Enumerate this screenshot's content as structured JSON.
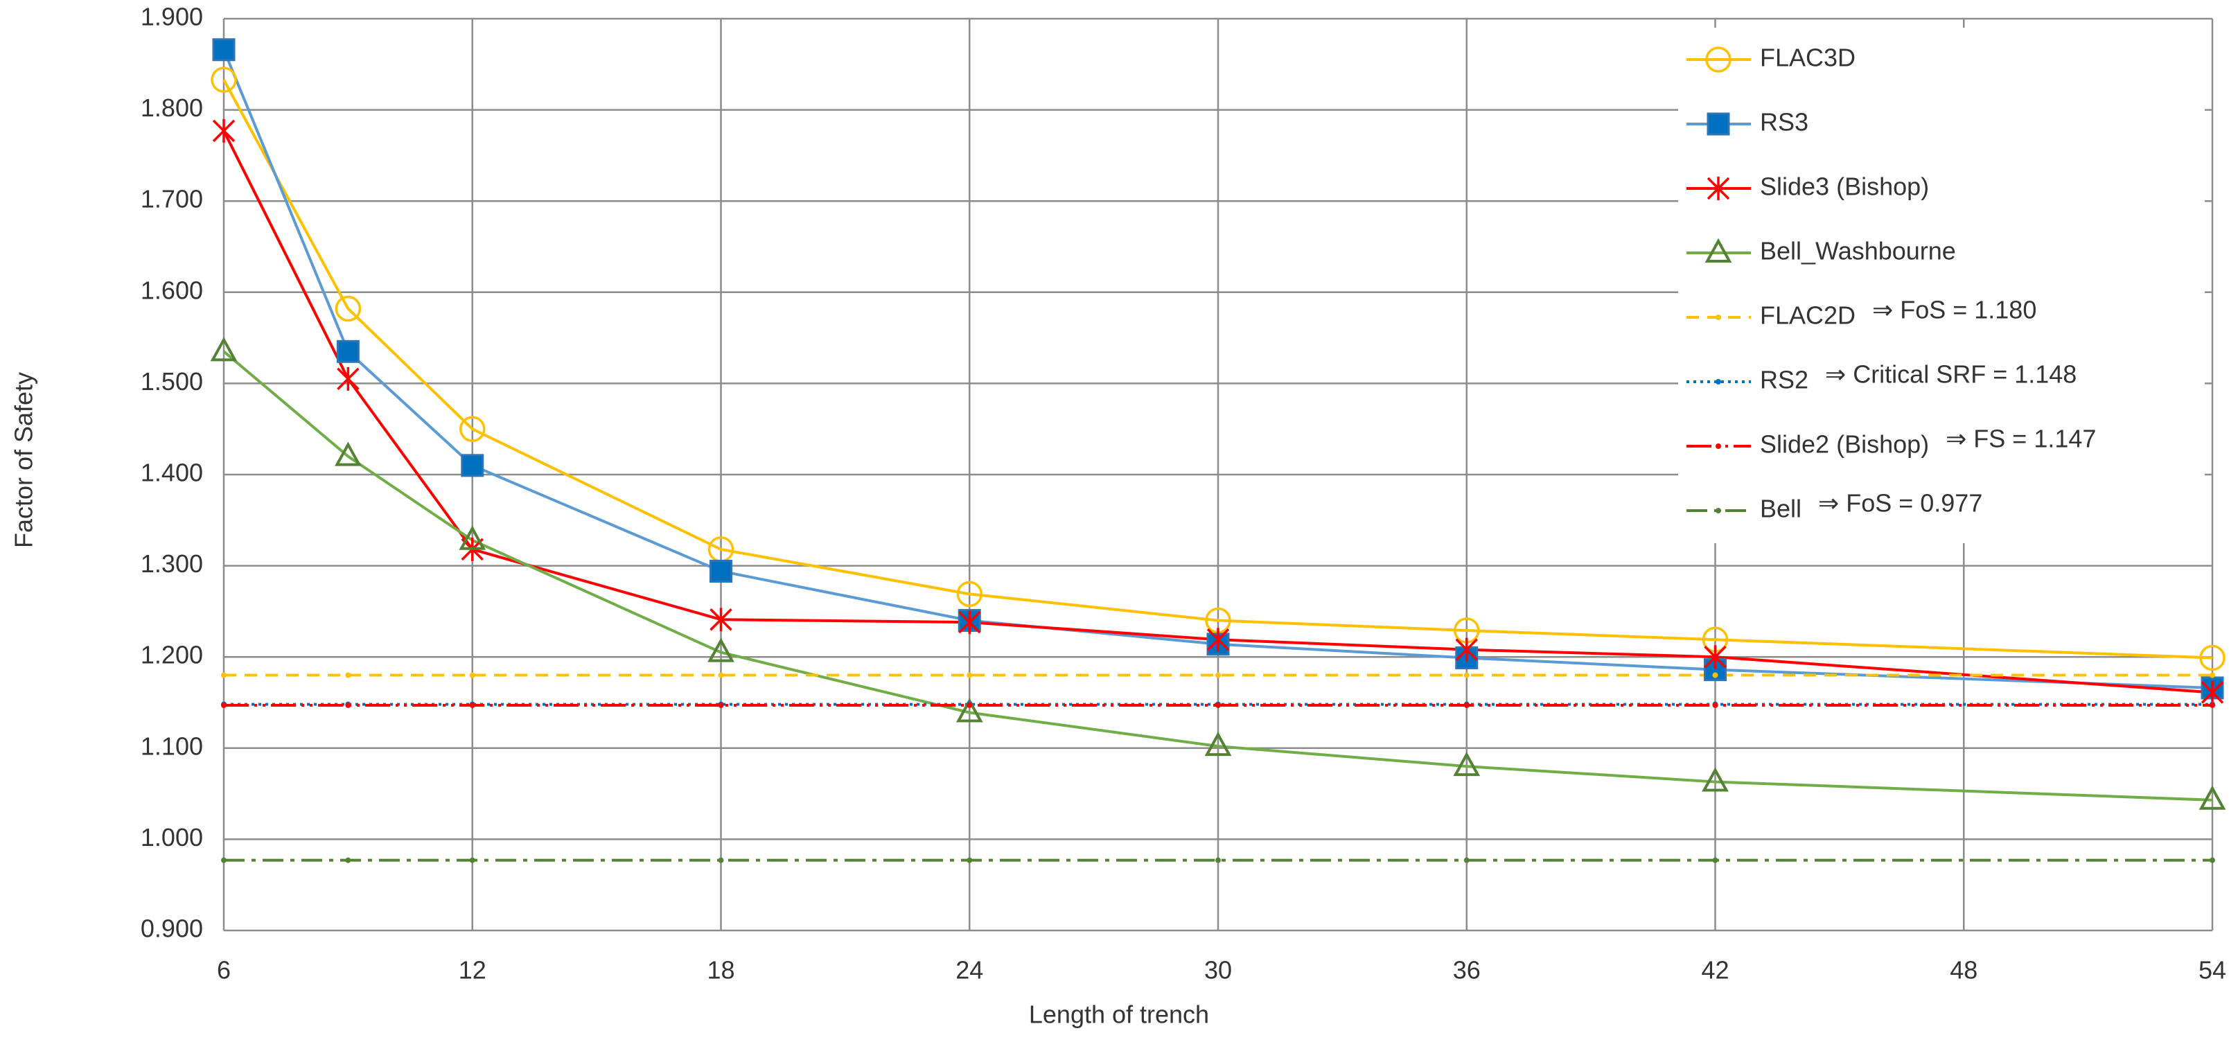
{
  "chart_data": {
    "type": "line",
    "x_label": "Length of trench",
    "y_label": "Factor of Safety",
    "x": [
      6,
      9,
      12,
      18,
      24,
      30,
      36,
      42,
      54
    ],
    "xlim": [
      6,
      54
    ],
    "xticks": [
      6,
      12,
      18,
      24,
      30,
      36,
      42,
      48,
      54
    ],
    "ylim": [
      0.9,
      1.9
    ],
    "yticks": [
      {
        "value": 0.9,
        "label": "0.900"
      },
      {
        "value": 1.0,
        "label": "1.000"
      },
      {
        "value": 1.1,
        "label": "1.100"
      },
      {
        "value": 1.2,
        "label": "1.200"
      },
      {
        "value": 1.3,
        "label": "1.300"
      },
      {
        "value": 1.4,
        "label": "1.400"
      },
      {
        "value": 1.5,
        "label": "1.500"
      },
      {
        "value": 1.6,
        "label": "1.600"
      },
      {
        "value": 1.7,
        "label": "1.700"
      },
      {
        "value": 1.8,
        "label": "1.800"
      },
      {
        "value": 1.9,
        "label": "1.900"
      }
    ],
    "grid": true,
    "legend": "upper right",
    "series": [
      {
        "name": "FLAC3D",
        "color": "#FFC000",
        "marker": "circle",
        "values": [
          1.833,
          1.582,
          1.45,
          1.318,
          1.269,
          1.24,
          1.229,
          1.219,
          1.199
        ]
      },
      {
        "name": "RS3",
        "color": "#5B9BD5",
        "marker_color": "#0070C0",
        "marker": "square",
        "values": [
          1.866,
          1.535,
          1.41,
          1.294,
          1.24,
          1.214,
          1.199,
          1.186,
          1.166
        ]
      },
      {
        "name": "Slide3 (Bishop)",
        "color": "#FF0000",
        "marker": "x-star",
        "values": [
          1.777,
          1.505,
          1.318,
          1.241,
          1.238,
          1.219,
          1.208,
          1.2,
          1.161
        ]
      },
      {
        "name": "Bell_Washbourne",
        "color": "#70AD47",
        "marker_color": "#548235",
        "marker": "triangle",
        "values": [
          1.535,
          1.42,
          1.328,
          1.205,
          1.139,
          1.102,
          1.08,
          1.063,
          1.043
        ]
      },
      {
        "name": "FLAC2D",
        "note": "⇒ FoS = 1.180",
        "color": "#FFC000",
        "dash": "18 12",
        "marker": "dot",
        "values": [
          1.18,
          1.18,
          1.18,
          1.18,
          1.18,
          1.18,
          1.18,
          1.18,
          1.18
        ]
      },
      {
        "name": "RS2",
        "note": "⇒ Critical SRF = 1.148",
        "color": "#0070C0",
        "dash": "4 6",
        "marker": "dot",
        "values": [
          1.148,
          1.148,
          1.148,
          1.148,
          1.148,
          1.148,
          1.148,
          1.148,
          1.148
        ]
      },
      {
        "name": "Slide2 (Bishop)",
        "note": "⇒ FS = 1.147",
        "color": "#FF0000",
        "dash": "36 8 4 8 4 8",
        "marker": "dot",
        "values": [
          1.147,
          1.147,
          1.147,
          1.147,
          1.147,
          1.147,
          1.147,
          1.147,
          1.147
        ]
      },
      {
        "name": "Bell",
        "note": "⇒ FoS = 0.977",
        "color": "#548235",
        "dash": "30 10 6 10",
        "marker": "dot",
        "values": [
          0.977,
          0.977,
          0.977,
          0.977,
          0.977,
          0.977,
          0.977,
          0.977,
          0.977
        ]
      }
    ]
  }
}
